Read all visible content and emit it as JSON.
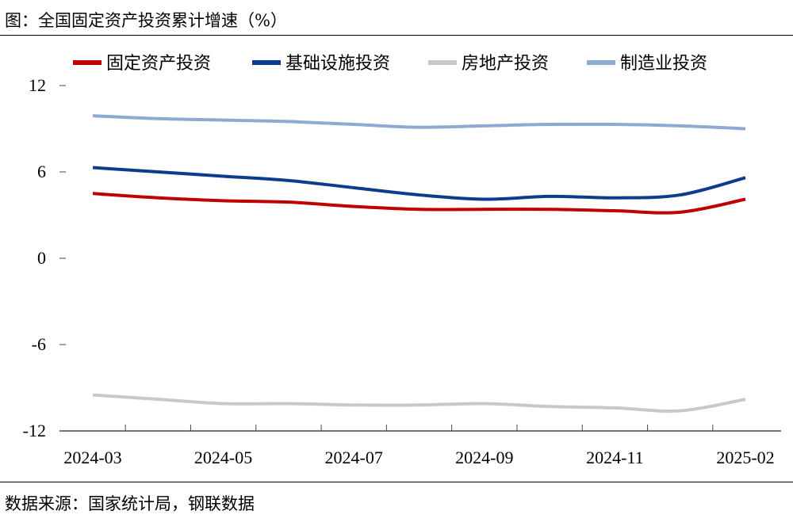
{
  "title": "图：全国固定资产投资累计增速（%）",
  "source": "数据来源：国家统计局，钢联数据",
  "chart_data": {
    "type": "line",
    "title": "图：全国固定资产投资累计增速（%）",
    "xlabel": "",
    "ylabel": "",
    "ylim": [
      -12,
      12
    ],
    "yticks": [
      "12",
      "6",
      "0",
      "-6",
      "-12"
    ],
    "x": [
      "2024-03",
      "2024-04",
      "2024-05",
      "2024-06",
      "2024-07",
      "2024-08",
      "2024-09",
      "2024-10",
      "2024-11",
      "2024-12",
      "2025-02"
    ],
    "xtick_labels": [
      "2024-03",
      "2024-05",
      "2024-07",
      "2024-09",
      "2024-11",
      "2025-02"
    ],
    "grid": false,
    "legend_position": "top",
    "series": [
      {
        "name": "固定资产投资",
        "color": "#C00000",
        "values": [
          4.5,
          4.2,
          4.0,
          3.9,
          3.6,
          3.4,
          3.4,
          3.4,
          3.3,
          3.2,
          4.1
        ]
      },
      {
        "name": "基础设施投资",
        "color": "#0C3C8C",
        "values": [
          6.3,
          6.0,
          5.7,
          5.4,
          4.9,
          4.4,
          4.1,
          4.3,
          4.2,
          4.4,
          5.6
        ]
      },
      {
        "name": "房地产投资",
        "color": "#C8C8C8",
        "values": [
          -9.5,
          -9.8,
          -10.1,
          -10.1,
          -10.2,
          -10.2,
          -10.1,
          -10.3,
          -10.4,
          -10.6,
          -9.8
        ]
      },
      {
        "name": "制造业投资",
        "color": "#8EA9D2",
        "values": [
          9.9,
          9.7,
          9.6,
          9.5,
          9.3,
          9.1,
          9.2,
          9.3,
          9.3,
          9.2,
          9.0
        ]
      }
    ]
  }
}
